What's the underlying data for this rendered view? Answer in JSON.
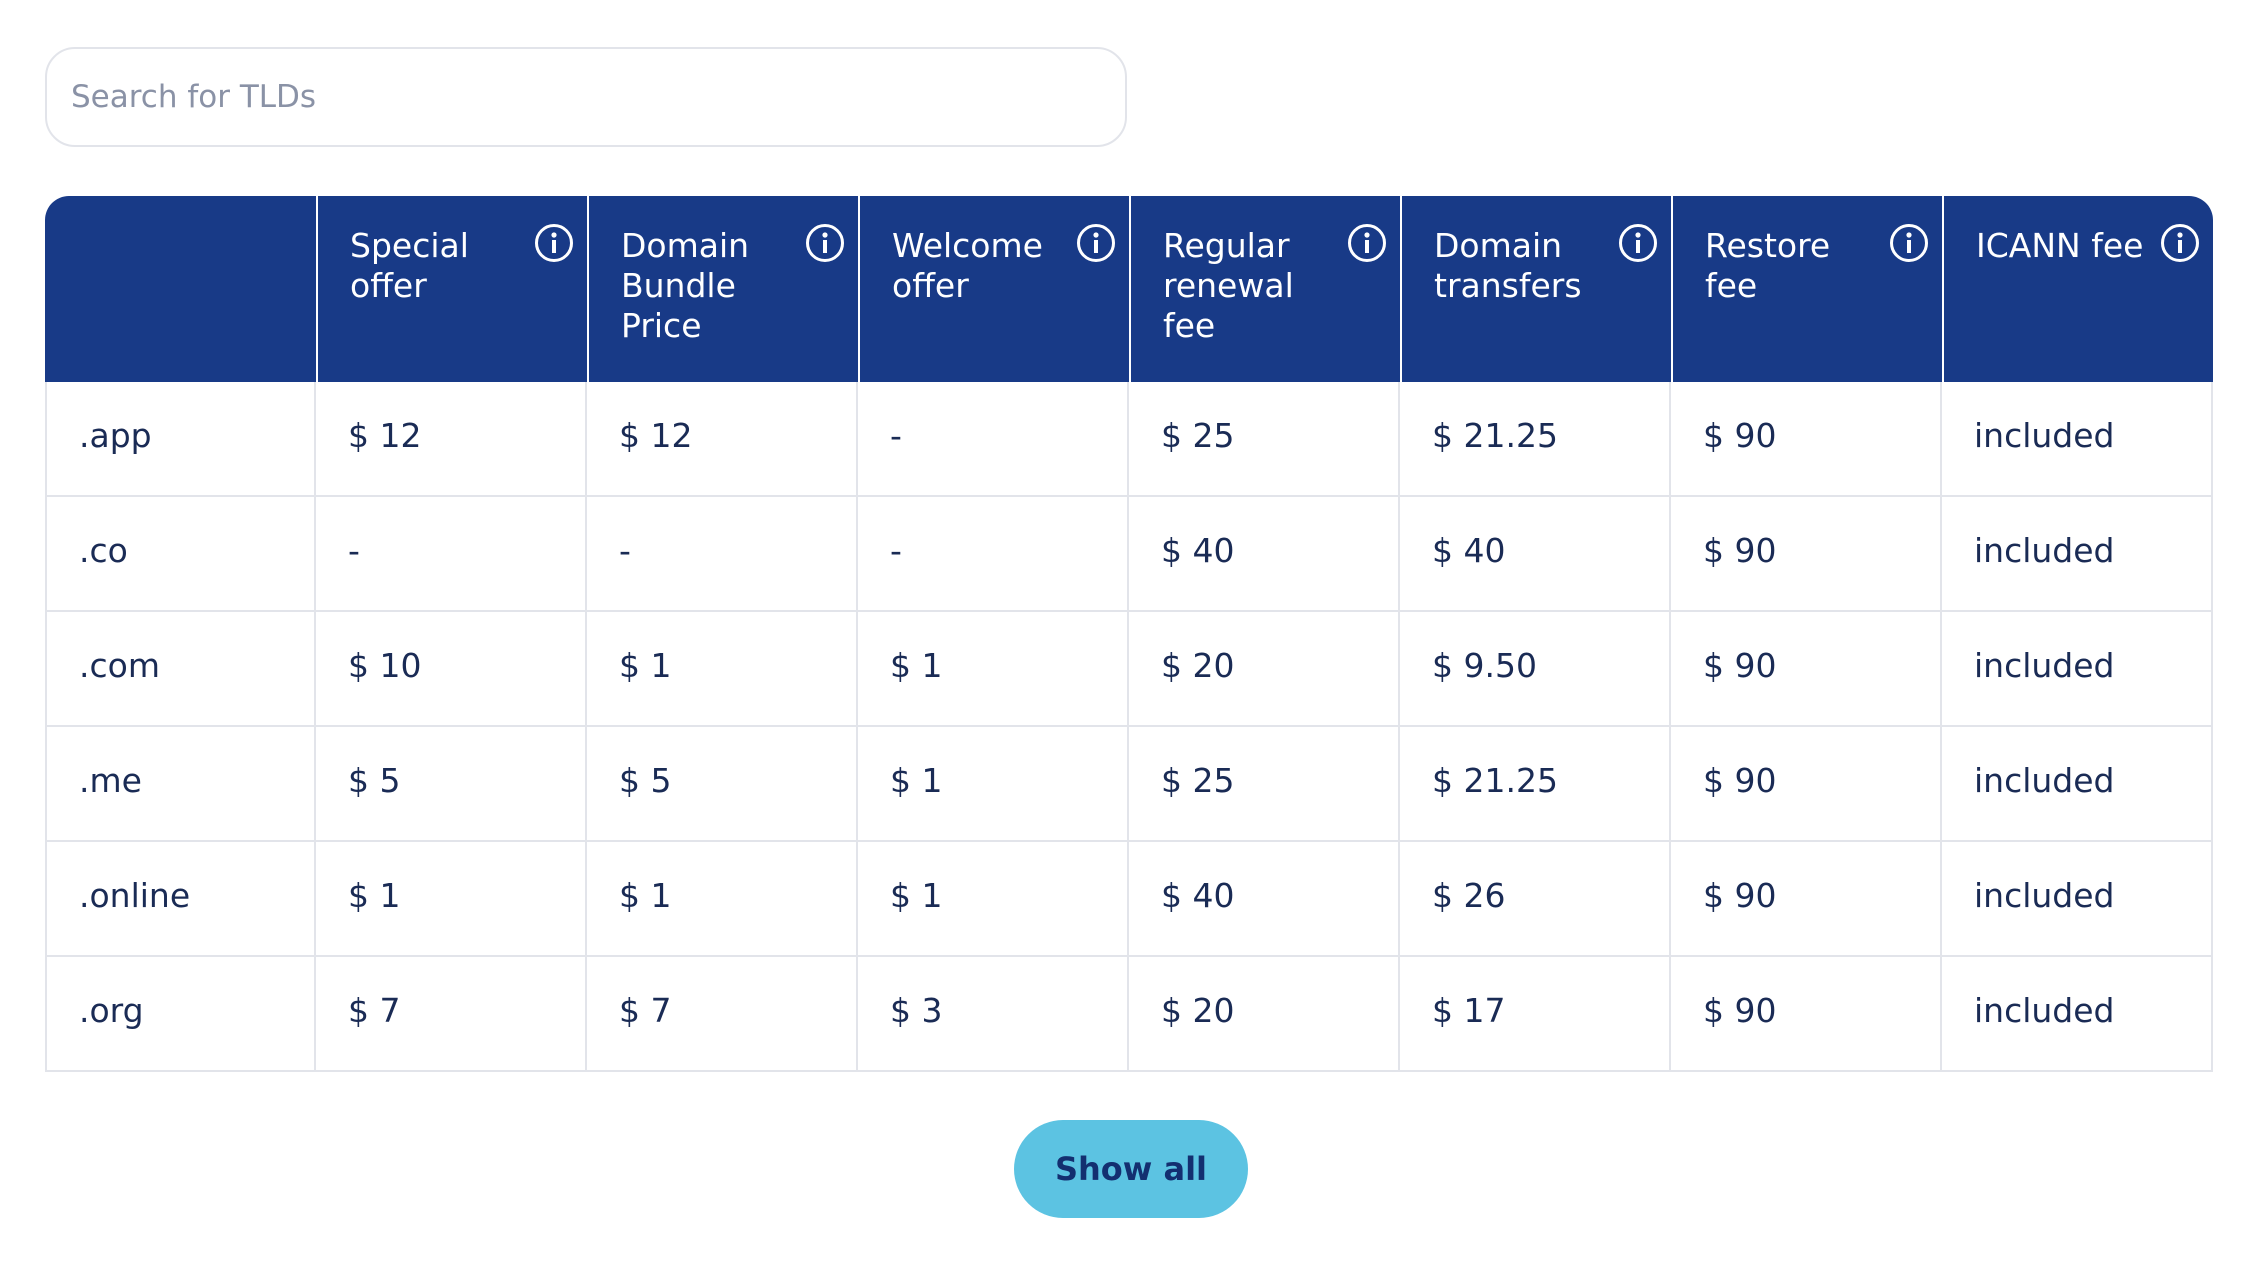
{
  "search": {
    "placeholder": "Search for TLDs",
    "value": ""
  },
  "table": {
    "headers": [
      {
        "label": "",
        "info": false
      },
      {
        "label": "Special offer",
        "info": true
      },
      {
        "label": "Domain Bundle Price",
        "info": true
      },
      {
        "label": "Welcome offer",
        "info": true
      },
      {
        "label": "Regular renewal fee",
        "info": true
      },
      {
        "label": "Domain transfers",
        "info": true
      },
      {
        "label": "Restore fee",
        "info": true
      },
      {
        "label": "ICANN fee",
        "info": true
      }
    ],
    "rows": [
      [
        ".app",
        "$ 12",
        "$ 12",
        "-",
        "$ 25",
        "$ 21.25",
        "$ 90",
        "included"
      ],
      [
        ".co",
        "-",
        "-",
        "-",
        "$ 40",
        "$ 40",
        "$ 90",
        "included"
      ],
      [
        ".com",
        "$ 10",
        "$ 1",
        "$ 1",
        "$ 20",
        "$ 9.50",
        "$ 90",
        "included"
      ],
      [
        ".me",
        "$ 5",
        "$ 5",
        "$ 1",
        "$ 25",
        "$ 21.25",
        "$ 90",
        "included"
      ],
      [
        ".online",
        "$ 1",
        "$ 1",
        "$ 1",
        "$ 40",
        "$ 26",
        "$ 90",
        "included"
      ],
      [
        ".org",
        "$ 7",
        "$ 7",
        "$ 3",
        "$ 20",
        "$ 17",
        "$ 90",
        "included"
      ]
    ]
  },
  "actions": {
    "show_all_label": "Show all"
  },
  "colors": {
    "header_bg": "#183a87",
    "button_bg": "#5cc3e2",
    "text": "#1a2b55"
  }
}
